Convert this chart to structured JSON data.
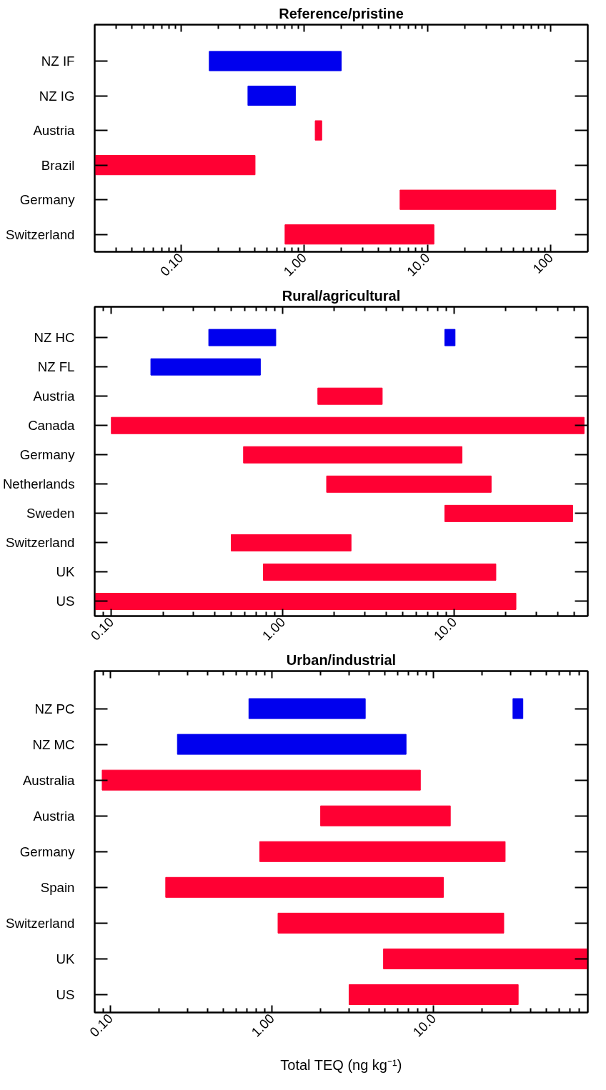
{
  "chart_data": [
    {
      "type": "bar",
      "orientation": "horizontal",
      "title": "Reference/pristine",
      "log": "x",
      "grid": false,
      "categories": [
        "NZ IF",
        "NZ IG",
        "Austria",
        "Brazil",
        "Germany",
        "Switzerland"
      ],
      "series": [
        {
          "colors": [
            "#0000ee",
            "#0000ee",
            "#ff0033",
            "#ff0033",
            "#ff0033",
            "#ff0033"
          ],
          "base": [
            0.17,
            0.35,
            1.23,
            0.02,
            6,
            0.7
          ],
          "values": [
            1.83,
            0.5,
            0.16,
            0.38,
            104,
            10.6
          ]
        }
      ],
      "xlim": [
        0.02,
        200
      ],
      "xticks": [
        {
          "value": 0.03,
          "label": null
        },
        {
          "value": 0.04,
          "label": null
        },
        {
          "value": 0.05,
          "label": null
        },
        {
          "value": 0.06,
          "label": null
        },
        {
          "value": 0.07,
          "label": null
        },
        {
          "value": 0.08,
          "label": null
        },
        {
          "value": 0.09,
          "label": null
        },
        {
          "value": 0.1,
          "label": "0.10"
        },
        {
          "value": 0.2,
          "label": null
        },
        {
          "value": 0.3,
          "label": null
        },
        {
          "value": 0.4,
          "label": null
        },
        {
          "value": 0.5,
          "label": null
        },
        {
          "value": 0.6,
          "label": null
        },
        {
          "value": 0.7,
          "label": null
        },
        {
          "value": 0.8,
          "label": null
        },
        {
          "value": 0.9,
          "label": null
        },
        {
          "value": 1,
          "label": "1.00"
        },
        {
          "value": 2,
          "label": null
        },
        {
          "value": 3,
          "label": null
        },
        {
          "value": 4,
          "label": null
        },
        {
          "value": 5,
          "label": null
        },
        {
          "value": 6,
          "label": null
        },
        {
          "value": 7,
          "label": null
        },
        {
          "value": 8,
          "label": null
        },
        {
          "value": 9,
          "label": null
        },
        {
          "value": 10,
          "label": "10.0"
        },
        {
          "value": 20,
          "label": null
        },
        {
          "value": 30,
          "label": null
        },
        {
          "value": 40,
          "label": null
        },
        {
          "value": 50,
          "label": null
        },
        {
          "value": 60,
          "label": null
        },
        {
          "value": 70,
          "label": null
        },
        {
          "value": 80,
          "label": null
        },
        {
          "value": 90,
          "label": null
        },
        {
          "value": 100,
          "label": "100"
        }
      ]
    },
    {
      "type": "bar",
      "orientation": "horizontal",
      "title": "Rural/agricultural",
      "log": "x",
      "grid": false,
      "categories": [
        "NZ HC",
        "NZ FL",
        "Austria",
        "Canada",
        "Germany",
        "Netherlands",
        "Sweden",
        "Switzerland",
        "UK",
        "US"
      ],
      "series": [
        {
          "colors": [
            "#0000ee",
            "#0000ee",
            "#ff0033",
            "#ff0033",
            "#ff0033",
            "#ff0033",
            "#ff0033",
            "#ff0033",
            "#ff0033",
            "#ff0033"
          ],
          "base": [
            0.37,
            0.17,
            1.6,
            0.1,
            0.59,
            1.8,
            8.8,
            0.5,
            0.77,
            0.08
          ],
          "values": [
            0.54,
            0.57,
            2.2,
            57,
            10.5,
            14.6,
            40.2,
            2.0,
            16.7,
            22.8
          ]
        },
        {
          "color": "#0000ee",
          "base": [
            8.8,
            null,
            null,
            null,
            null,
            null,
            null,
            null,
            null,
            null
          ],
          "values": [
            1.3,
            null,
            null,
            null,
            null,
            null,
            null,
            null,
            null,
            null
          ]
        }
      ],
      "xlim": [
        0.08,
        60
      ],
      "xticks": [
        {
          "value": 0.09,
          "label": null
        },
        {
          "value": 0.1,
          "label": "0.10"
        },
        {
          "value": 0.2,
          "label": null
        },
        {
          "value": 0.3,
          "label": null
        },
        {
          "value": 0.4,
          "label": null
        },
        {
          "value": 0.5,
          "label": null
        },
        {
          "value": 0.6,
          "label": null
        },
        {
          "value": 0.7,
          "label": null
        },
        {
          "value": 0.8,
          "label": null
        },
        {
          "value": 0.9,
          "label": null
        },
        {
          "value": 1,
          "label": "1.00"
        },
        {
          "value": 2,
          "label": null
        },
        {
          "value": 3,
          "label": null
        },
        {
          "value": 4,
          "label": null
        },
        {
          "value": 5,
          "label": null
        },
        {
          "value": 6,
          "label": null
        },
        {
          "value": 7,
          "label": null
        },
        {
          "value": 8,
          "label": null
        },
        {
          "value": 9,
          "label": null
        },
        {
          "value": 10,
          "label": "10.0"
        },
        {
          "value": 20,
          "label": null
        },
        {
          "value": 30,
          "label": null
        },
        {
          "value": 40,
          "label": null
        },
        {
          "value": 50,
          "label": null
        }
      ]
    },
    {
      "type": "bar",
      "orientation": "horizontal",
      "title": "Urban/industrial",
      "xlabel": "Total TEQ (ng kg⁻¹)",
      "log": "x",
      "grid": false,
      "categories": [
        "NZ PC",
        "NZ MC",
        "Australia",
        "Austria",
        "Germany",
        "Spain",
        "Switzerland",
        "UK",
        "US"
      ],
      "series": [
        {
          "colors": [
            "#0000ee",
            "#0000ee",
            "#ff0033",
            "#ff0033",
            "#ff0033",
            "#ff0033",
            "#ff0033",
            "#ff0033",
            "#ff0033"
          ],
          "base": [
            0.72,
            0.26,
            0.089,
            2.0,
            0.84,
            0.22,
            1.09,
            4.9,
            3.0
          ],
          "values": [
            3.06,
            6.5,
            8.2,
            10.7,
            26.9,
            11.3,
            26.1,
            85.1,
            30.4
          ]
        },
        {
          "color": "#0000ee",
          "base": [
            31,
            null,
            null,
            null,
            null,
            null,
            null,
            null,
            null
          ],
          "values": [
            4.7,
            null,
            null,
            null,
            null,
            null,
            null,
            null,
            null
          ]
        }
      ],
      "xlim": [
        0.08,
        90
      ],
      "xticks": [
        {
          "value": 0.09,
          "label": null
        },
        {
          "value": 0.1,
          "label": "0.10"
        },
        {
          "value": 0.2,
          "label": null
        },
        {
          "value": 0.3,
          "label": null
        },
        {
          "value": 0.4,
          "label": null
        },
        {
          "value": 0.5,
          "label": null
        },
        {
          "value": 0.6,
          "label": null
        },
        {
          "value": 0.7,
          "label": null
        },
        {
          "value": 0.8,
          "label": null
        },
        {
          "value": 0.9,
          "label": null
        },
        {
          "value": 1,
          "label": "1.00"
        },
        {
          "value": 2,
          "label": null
        },
        {
          "value": 3,
          "label": null
        },
        {
          "value": 4,
          "label": null
        },
        {
          "value": 5,
          "label": null
        },
        {
          "value": 6,
          "label": null
        },
        {
          "value": 7,
          "label": null
        },
        {
          "value": 8,
          "label": null
        },
        {
          "value": 9,
          "label": null
        },
        {
          "value": 10,
          "label": "10.0"
        },
        {
          "value": 20,
          "label": null
        },
        {
          "value": 30,
          "label": null
        },
        {
          "value": 40,
          "label": null
        },
        {
          "value": 50,
          "label": null
        },
        {
          "value": 60,
          "label": null
        },
        {
          "value": 70,
          "label": null
        },
        {
          "value": 80,
          "label": null
        }
      ]
    }
  ]
}
